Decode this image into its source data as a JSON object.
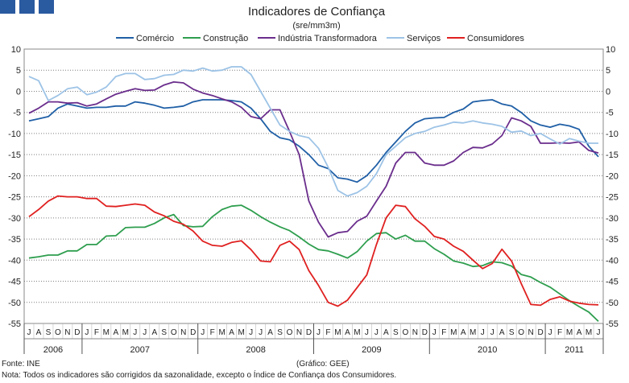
{
  "brand": {
    "color": "#2a5aa0"
  },
  "chart_data": {
    "type": "line",
    "title": "Indicadores de Confiança",
    "subtitle": "(sre/mm3m)",
    "ylim": [
      -55,
      10
    ],
    "yticks": [
      10,
      5,
      0,
      -5,
      -10,
      -15,
      -20,
      -25,
      -30,
      -35,
      -40,
      -45,
      -50,
      -55
    ],
    "month_labels": [
      "J",
      "A",
      "S",
      "O",
      "N",
      "D",
      "J",
      "F",
      "M",
      "A",
      "M",
      "J",
      "J",
      "A",
      "S",
      "O",
      "N",
      "D",
      "J",
      "F",
      "M",
      "A",
      "M",
      "J",
      "J",
      "A",
      "S",
      "O",
      "N",
      "D",
      "J",
      "F",
      "M",
      "A",
      "M",
      "J",
      "J",
      "A",
      "S",
      "O",
      "N",
      "D",
      "J",
      "F",
      "M",
      "A",
      "M",
      "J",
      "J",
      "A",
      "S",
      "O",
      "N",
      "D",
      "J",
      "F",
      "M",
      "A",
      "M",
      "J"
    ],
    "years": [
      {
        "label": "2006",
        "start": 0,
        "count": 6
      },
      {
        "label": "2007",
        "start": 6,
        "count": 12
      },
      {
        "label": "2008",
        "start": 18,
        "count": 12
      },
      {
        "label": "2009",
        "start": 30,
        "count": 12
      },
      {
        "label": "2010",
        "start": 42,
        "count": 12
      },
      {
        "label": "2011",
        "start": 54,
        "count": 6
      }
    ],
    "series": [
      {
        "name": "Comércio",
        "color": "#1f5fa6",
        "values": [
          -7,
          -6.5,
          -6,
          -4,
          -3,
          -3.5,
          -4,
          -3.8,
          -3.8,
          -3.5,
          -3.5,
          -2.5,
          -2.8,
          -3.3,
          -4,
          -3.8,
          -3.5,
          -2.5,
          -2,
          -2,
          -2,
          -2.2,
          -2.5,
          -4,
          -6.5,
          -9.5,
          -11,
          -11.5,
          -13,
          -15,
          -17.5,
          -18.3,
          -20.5,
          -20.8,
          -21.5,
          -20,
          -17.5,
          -14.5,
          -12,
          -9.5,
          -7.5,
          -6.5,
          -6.3,
          -6.2,
          -5,
          -4.2,
          -2.5,
          -2.2,
          -2,
          -3,
          -3.5,
          -5,
          -7,
          -8,
          -8.5,
          -7.8,
          -8.2,
          -9,
          -13,
          -15.5
        ]
      },
      {
        "name": "Construção",
        "color": "#2e9e4e",
        "values": [
          -39.5,
          -39.2,
          -38.8,
          -38.8,
          -37.8,
          -37.8,
          -36.3,
          -36.3,
          -34.3,
          -34.2,
          -32.3,
          -32.2,
          -32.2,
          -31.3,
          -30,
          -29.2,
          -31.8,
          -32.1,
          -32,
          -29.7,
          -28,
          -27.2,
          -27,
          -28.2,
          -29.7,
          -31,
          -32.1,
          -33,
          -34.5,
          -36.2,
          -37.5,
          -37.8,
          -38.6,
          -39.5,
          -38,
          -35.5,
          -33.7,
          -33.5,
          -35,
          -34.1,
          -35.5,
          -35.5,
          -37.3,
          -38.6,
          -40.2,
          -40.7,
          -41.5,
          -41.3,
          -40.4,
          -40.6,
          -41.4,
          -43.4,
          -44,
          -45.3,
          -46.4,
          -48,
          -49.6,
          -51,
          -52.3,
          -54.5
        ]
      },
      {
        "name": "Indústria Transformadora",
        "color": "#6a2d8c",
        "values": [
          -5.2,
          -4,
          -2.5,
          -2.5,
          -2.8,
          -2.7,
          -3.5,
          -3,
          -1.8,
          -0.7,
          0,
          0.6,
          0.2,
          0.3,
          1.5,
          2.2,
          2,
          0.5,
          -0.4,
          -1,
          -1.8,
          -2.5,
          -3.8,
          -6,
          -6.5,
          -4.4,
          -4.4,
          -9.5,
          -15,
          -26,
          -31,
          -34.5,
          -33.5,
          -33.2,
          -30.8,
          -29.6,
          -26,
          -22.5,
          -17,
          -14.5,
          -14.5,
          -17,
          -17.5,
          -17.5,
          -16.5,
          -14.5,
          -13.3,
          -13.4,
          -12.5,
          -10.5,
          -6.3,
          -7,
          -8.3,
          -12.3,
          -12.3,
          -12.2,
          -12.3,
          -12,
          -14,
          -14.6
        ]
      },
      {
        "name": "Serviços",
        "color": "#9dc3e6",
        "values": [
          3.5,
          2.5,
          -2.2,
          -1,
          0.6,
          1,
          -0.8,
          -0.2,
          1,
          3.5,
          4.2,
          4.2,
          2.8,
          3,
          3.8,
          4,
          5,
          4.8,
          5.5,
          4.8,
          5,
          5.8,
          5.8,
          4,
          0,
          -4,
          -8,
          -9.5,
          -10.5,
          -11,
          -13.5,
          -18,
          -23.5,
          -24.8,
          -24,
          -22.5,
          -19.5,
          -15,
          -13,
          -11,
          -10,
          -9.5,
          -8.5,
          -8,
          -7.3,
          -7.5,
          -7,
          -7.5,
          -7.8,
          -8.3,
          -9.7,
          -9.4,
          -10.5,
          -10,
          -11.3,
          -12.5,
          -11.2,
          -11.8,
          -12.3,
          -12.3
        ]
      },
      {
        "name": "Consumidores",
        "color": "#e02020",
        "values": [
          -29.7,
          -28,
          -26,
          -24.8,
          -25,
          -25,
          -25.4,
          -25.4,
          -27.2,
          -27.3,
          -27,
          -26.7,
          -27,
          -28.6,
          -29.5,
          -30.8,
          -31.5,
          -33.1,
          -35.5,
          -36.5,
          -36.7,
          -35.8,
          -35.4,
          -37.5,
          -40.2,
          -40.4,
          -36.5,
          -35.5,
          -37.5,
          -42.5,
          -46,
          -50,
          -50.9,
          -49.5,
          -46.5,
          -43.5,
          -36.3,
          -30,
          -27,
          -27.3,
          -30.2,
          -32,
          -34.4,
          -35,
          -36.7,
          -37.9,
          -40,
          -42,
          -40.8,
          -37.4,
          -40.2,
          -45.5,
          -50.5,
          -50.7,
          -49.3,
          -48.7,
          -49.7,
          -50.2,
          -50.5,
          -50.6
        ]
      }
    ]
  },
  "footer": {
    "source": "Fonte: INE",
    "credit": "(Gráfico: GEE)",
    "note": "Nota: Todos os indicadores são corrigidos da sazonalidade, excepto o Índice de Confiança dos Consumidores."
  }
}
